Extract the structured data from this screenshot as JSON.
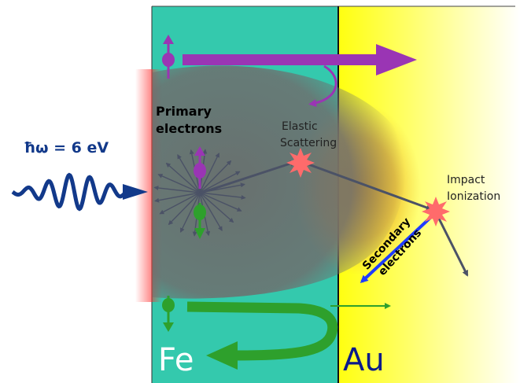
{
  "photon": {
    "label": "ħω = 6 eV"
  },
  "labels": {
    "primary_line1": "Primary",
    "primary_line2": "electrons",
    "elastic_line1": "Elastic",
    "elastic_line2": "Scattering",
    "impact_line1": "Impact",
    "impact_line2": "Ionization",
    "secondary_line1": "Secondary",
    "secondary_line2": "electrons"
  },
  "layers": {
    "left": "Fe",
    "right": "Au"
  },
  "colors": {
    "fe_layer": "#34c9ad",
    "au_layer_start": "#ffff00",
    "au_layer_end": "#ffffff",
    "photon_wave": "#12398a",
    "spin_up_majority": "#9a35b4",
    "spin_down_minority": "#2ea02c",
    "trajectory": "#4b5266",
    "scatter_star": "#ff6b6b",
    "secondary_arrow": "#1e3cff",
    "hot_electron_cloud": "#6e6e6e",
    "interface_glow": "#e8a020"
  },
  "icons": {
    "scatter_event": "red-starburst",
    "spin_up": "purple-spin-arrow-up",
    "spin_down": "green-spin-arrow-down"
  }
}
